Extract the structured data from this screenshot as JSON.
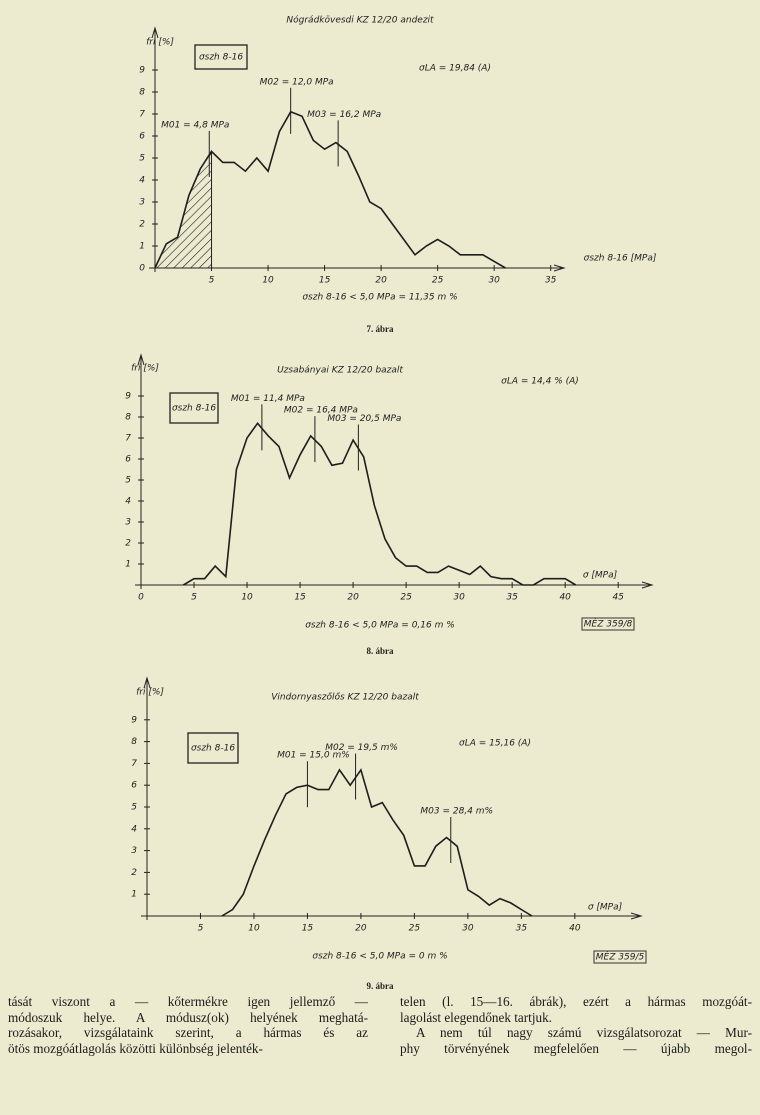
{
  "chart_data": [
    {
      "type": "line",
      "title": "Nógrádkövesdi KZ 12/20 andezit",
      "y_label": "fri [%]",
      "x_label": "σszh 8-16 [MPa]",
      "box_label": "σszh 8-16",
      "la_label": "σLA = 19,84 (A)",
      "footnote": "σszh 8-16 < 5,0 MPa = 11,35 m %",
      "caption": "7. ábra",
      "modes": [
        {
          "label": "M01 = 4,8 MPa",
          "value": 4.8
        },
        {
          "label": "M02 = 12,0 MPa",
          "value": 12.0
        },
        {
          "label": "M03 = 16,2 MPa",
          "value": 16.2
        }
      ],
      "shaded_xlim": [
        0,
        5
      ],
      "x": [
        0,
        1,
        2,
        3,
        4,
        5,
        6,
        7,
        8,
        9,
        10,
        11,
        12,
        13,
        14,
        15,
        16,
        17,
        18,
        19,
        20,
        21,
        22,
        23,
        24,
        25,
        26,
        27,
        28,
        29,
        30,
        31
      ],
      "values": [
        0,
        1.1,
        1.4,
        3.3,
        4.5,
        5.3,
        4.8,
        4.8,
        4.4,
        5.0,
        4.4,
        6.2,
        7.1,
        6.9,
        5.8,
        5.4,
        5.7,
        5.3,
        4.2,
        3.0,
        2.7,
        2.0,
        1.3,
        0.6,
        1.0,
        1.3,
        1.0,
        0.6,
        0.6,
        0.6,
        0.3,
        0
      ],
      "xlim": [
        0,
        36
      ],
      "ylim": [
        0,
        10
      ],
      "xticks": [
        5,
        10,
        15,
        20,
        25,
        30,
        35
      ],
      "yticks": [
        0,
        1,
        2,
        3,
        4,
        5,
        6,
        7,
        8,
        9
      ],
      "color": "#1e1e1e"
    },
    {
      "type": "line",
      "title": "Uzsabányai KZ 12/20 bazalt",
      "y_label": "fri [%]",
      "x_label": "σ [MPa]",
      "box_label": "σszh 8-16",
      "la_label": "σLA = 14,4 % (A)",
      "footnote": "σszh 8-16 < 5,0 MPa = 0,16 m %",
      "caption": "8. ábra",
      "stamp": "MÉZ 359/8",
      "modes": [
        {
          "label": "M01 = 11,4 MPa",
          "value": 11.4
        },
        {
          "label": "M02 = 16,4 MPa",
          "value": 16.4
        },
        {
          "label": "M03 = 20,5 MPa",
          "value": 20.5
        }
      ],
      "x": [
        4,
        5,
        6,
        7,
        8,
        9,
        10,
        11,
        12,
        13,
        14,
        15,
        16,
        17,
        18,
        19,
        20,
        21,
        22,
        23,
        24,
        25,
        26,
        27,
        28,
        29,
        30,
        31,
        32,
        33,
        34,
        35,
        36,
        37,
        38,
        39,
        40,
        41
      ],
      "values": [
        0,
        0.3,
        0.3,
        0.9,
        0.4,
        5.5,
        7.0,
        7.7,
        7.1,
        6.6,
        5.1,
        6.2,
        7.1,
        6.6,
        5.7,
        5.8,
        6.9,
        6.1,
        3.8,
        2.2,
        1.3,
        0.9,
        0.9,
        0.6,
        0.6,
        0.9,
        0.7,
        0.5,
        0.9,
        0.4,
        0.3,
        0.3,
        0,
        0,
        0.3,
        0.3,
        0.3,
        0
      ],
      "xlim": [
        0,
        48
      ],
      "ylim": [
        0,
        10
      ],
      "xticks": [
        0,
        5,
        10,
        15,
        20,
        25,
        30,
        35,
        40,
        45
      ],
      "yticks": [
        1,
        2,
        3,
        4,
        5,
        6,
        7,
        8,
        9
      ],
      "color": "#1e1e1e"
    },
    {
      "type": "line",
      "title": "Vindornyaszőlős KZ 12/20 bazalt",
      "y_label": "fri [%]",
      "x_label": "σ [MPa]",
      "box_label": "σszh 8-16",
      "la_label": "σLA = 15,16 (A)",
      "footnote": "σszh 8-16 < 5,0 MPa = 0 m %",
      "caption": "9. ábra",
      "stamp": "MÉZ 359/5",
      "modes": [
        {
          "label": "M01 = 15,0 m%",
          "value": 15.0
        },
        {
          "label": "M02 = 19,5 m%",
          "value": 19.5
        },
        {
          "label": "M03 = 28,4 m%",
          "value": 28.4
        }
      ],
      "x": [
        7,
        8,
        9,
        10,
        11,
        12,
        13,
        14,
        15,
        16,
        17,
        18,
        19,
        20,
        21,
        22,
        23,
        24,
        25,
        26,
        27,
        28,
        29,
        30,
        31,
        32,
        33,
        34,
        35,
        36
      ],
      "values": [
        0,
        0.3,
        1.0,
        2.3,
        3.5,
        4.6,
        5.6,
        5.9,
        6.0,
        5.8,
        5.8,
        6.7,
        6.0,
        6.7,
        5.0,
        5.2,
        4.4,
        3.7,
        2.3,
        2.3,
        3.2,
        3.6,
        3.2,
        1.2,
        0.9,
        0.5,
        0.8,
        0.6,
        0.3,
        0
      ],
      "xlim": [
        0,
        46
      ],
      "ylim": [
        0,
        10
      ],
      "xticks": [
        5,
        10,
        15,
        20,
        25,
        30,
        35,
        40
      ],
      "yticks": [
        1,
        2,
        3,
        4,
        5,
        6,
        7,
        8,
        9
      ],
      "color": "#1e1e1e"
    }
  ],
  "text": {
    "left": [
      "tását viszont a — kőtermékre igen jellemző —",
      "módoszuk helye. A módusz(ok) helyének meghatá-",
      "rozásakor, vizsgálataink szerint, a hármas és az",
      "ötös mozgóátlagolás közötti különbség jelenték-"
    ],
    "right": [
      "telen (l. 15—16. ábrák), ezért a hármas mozgóát-",
      "lagolást elegendőnek tartjuk.",
      "A nem túl nagy számú vizsgálatsorozat — Mur-",
      "phy törvényének megfelelően — újabb megol-"
    ]
  }
}
